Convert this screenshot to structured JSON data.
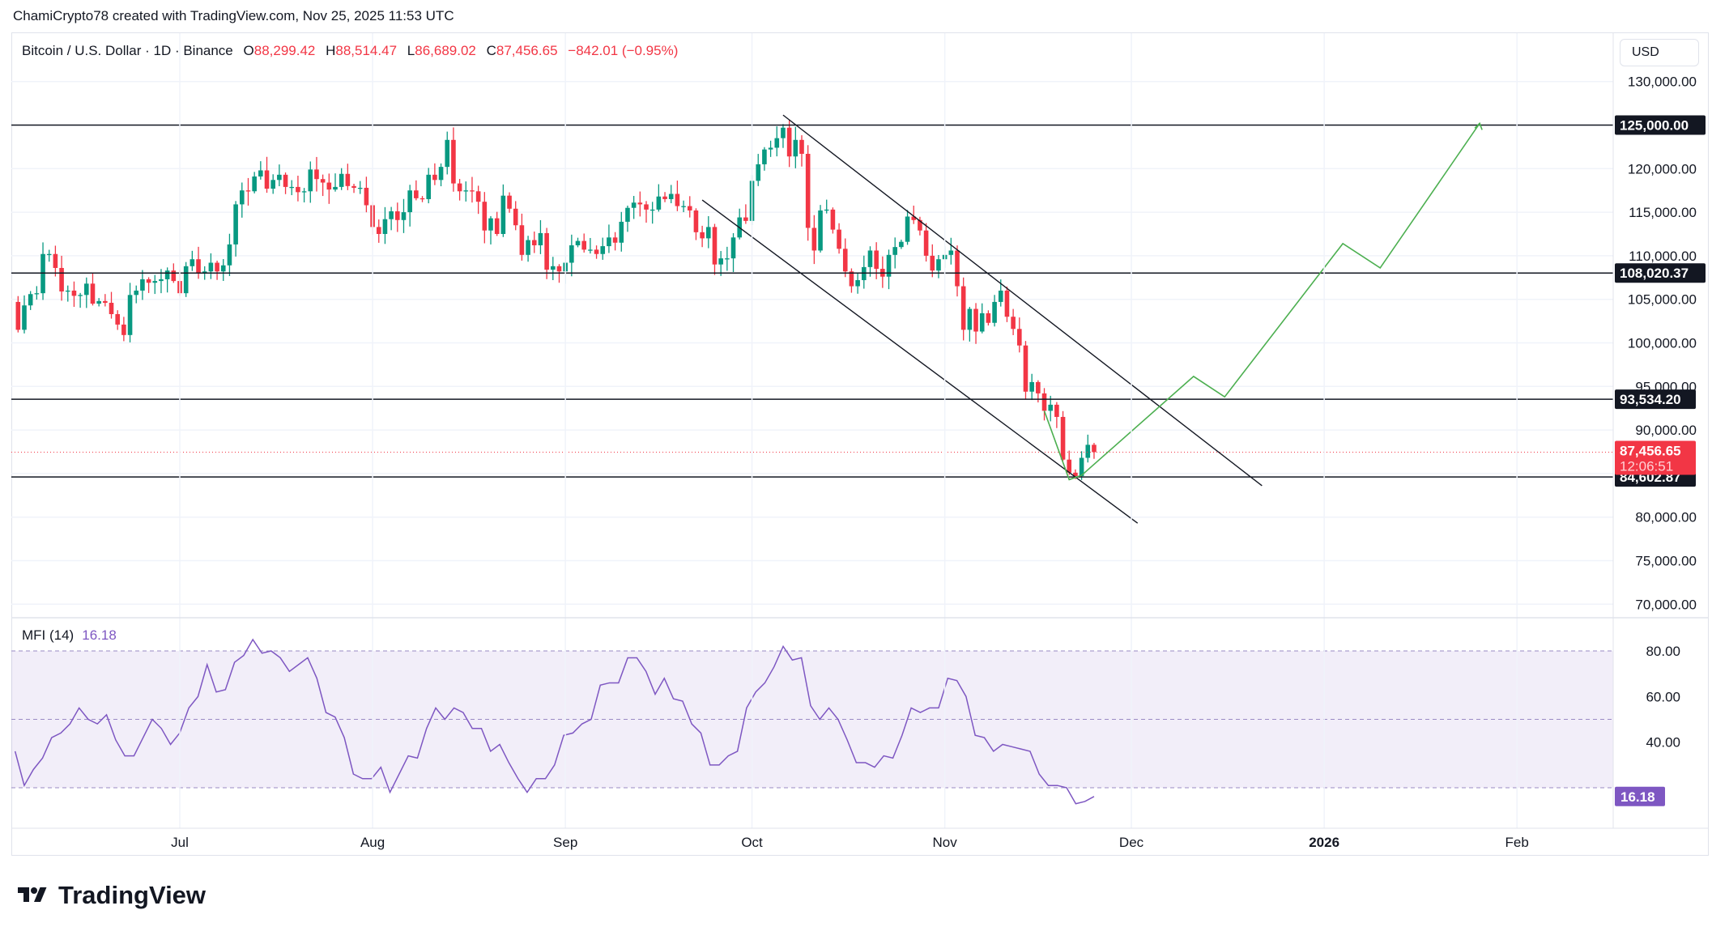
{
  "header": {
    "attribution": "ChamiCrypto78 created with TradingView.com, Nov 25, 2025 11:53 UTC"
  },
  "legend": {
    "symbol": "Bitcoin / U.S. Dollar · 1D · Binance",
    "o_label": "O",
    "o": "88,299.42",
    "h_label": "H",
    "h": "88,514.47",
    "l_label": "L",
    "l": "86,689.02",
    "c_label": "C",
    "c": "87,456.65",
    "change": "−842.01 (−0.95%)"
  },
  "currency_button": "USD",
  "indicator": {
    "name": "MFI (14)",
    "value": "16.18"
  },
  "logo": {
    "text": "TradingView"
  },
  "colors": {
    "up": "#089981",
    "down": "#f23645",
    "mfi": "#7e57c2",
    "projection": "#4caf50",
    "lines": "#131722"
  },
  "chart_data": [
    {
      "type": "candlestick",
      "ylim": [
        67500,
        132500
      ],
      "y_ticks": [
        "130,000.00",
        "120,000.00",
        "115,000.00",
        "110,000.00",
        "105,000.00",
        "100,000.00",
        "95,000.00",
        "90,000.00",
        "80,000.00",
        "75,000.00",
        "70,000.00"
      ],
      "y_tick_values": [
        130000,
        120000,
        115000,
        110000,
        105000,
        100000,
        95000,
        90000,
        80000,
        75000,
        70000
      ],
      "x_ticks": [
        {
          "label": "Jul",
          "date": "2025-07-01"
        },
        {
          "label": "Aug",
          "date": "2025-08-01"
        },
        {
          "label": "Sep",
          "date": "2025-09-01"
        },
        {
          "label": "Oct",
          "date": "2025-10-01"
        },
        {
          "label": "Nov",
          "date": "2025-11-01"
        },
        {
          "label": "Dec",
          "date": "2025-12-01"
        },
        {
          "label": "2026",
          "date": "2026-01-01"
        },
        {
          "label": "Feb",
          "date": "2026-02-01"
        }
      ],
      "x_range": [
        "2025-06-04",
        "2026-02-12"
      ],
      "grid": true,
      "start_date": "2025-06-04",
      "closes": [
        104700,
        101500,
        104300,
        105600,
        105700,
        110200,
        110200,
        108600,
        105900,
        106000,
        105400,
        105500,
        106800,
        104500,
        104800,
        104600,
        103300,
        102100,
        100900,
        105500,
        106000,
        107300,
        106900,
        107100,
        107300,
        108300,
        107100,
        105700,
        108800,
        109600,
        108000,
        108200,
        109200,
        108200,
        108900,
        111300,
        115900,
        117500,
        117400,
        119100,
        119800,
        117700,
        118700,
        119300,
        117900,
        117900,
        117300,
        117400,
        119900,
        118800,
        118400,
        117600,
        117900,
        119400,
        118000,
        117800,
        117800,
        115800,
        113300,
        112500,
        114200,
        115100,
        114100,
        115000,
        117500,
        116600,
        116500,
        119300,
        118700,
        120200,
        123300,
        118300,
        117400,
        117500,
        117400,
        116200,
        112900,
        114300,
        112500,
        116900,
        115400,
        113500,
        110100,
        111800,
        111200,
        112600,
        108400,
        108800,
        108200,
        109200,
        111200,
        111700,
        110700,
        110700,
        110200,
        111100,
        112100,
        111500,
        113900,
        115500,
        116100,
        115900,
        115300,
        115300,
        116800,
        116500,
        117100,
        115700,
        115700,
        115200,
        112700,
        112000,
        113300,
        109000,
        109700,
        109700,
        112100,
        114400,
        114000,
        118600,
        120500,
        122200,
        122400,
        123500,
        124700,
        121400,
        123300,
        121700,
        113200,
        110600,
        115200,
        115300,
        113000,
        110800,
        108200,
        106500,
        107200,
        108700,
        110600,
        108500,
        107600,
        110100,
        111000,
        111600,
        114500,
        114100,
        112900,
        110000,
        108300,
        109600,
        110100,
        110600,
        106500,
        101500,
        103900,
        101300,
        103400,
        102300,
        104700,
        106000,
        103000,
        101600,
        99700,
        94400,
        95500,
        94200,
        92200,
        92900,
        91500,
        86600,
        85100,
        84700,
        86800,
        88299.42,
        87456.65
      ],
      "last_candle": {
        "open": 88299.42,
        "high": 88514.47,
        "low": 86689.02,
        "close": 87456.65
      },
      "horizontal_levels": [
        {
          "price": 125000,
          "label": "125,000.00"
        },
        {
          "price": 108020.37,
          "label": "108,020.37"
        },
        {
          "price": 93534.2,
          "label": "93,534.20"
        },
        {
          "price": 84602.87,
          "label": "84,602.87"
        }
      ],
      "current_price": {
        "price": 87456.65,
        "label": "87,456.65",
        "countdown": "12:06:51"
      },
      "channel_lines": [
        [
          [
            "2025-10-06",
            126150
          ],
          [
            "2025-12-22",
            83600
          ]
        ],
        [
          [
            "2025-09-23",
            116400
          ],
          [
            "2025-12-02",
            79300
          ]
        ]
      ],
      "projection_path": [
        [
          "2025-11-17",
          92200
        ],
        [
          "2025-11-21",
          84300
        ],
        [
          "2025-11-23",
          84800
        ],
        [
          "2025-12-11",
          96150
        ],
        [
          "2025-12-16",
          93800
        ],
        [
          "2026-01-04",
          111400
        ],
        [
          "2026-01-10",
          108600
        ],
        [
          "2026-01-26",
          125200
        ]
      ]
    },
    {
      "type": "line",
      "name": "MFI (14)",
      "ylim": [
        8,
        88
      ],
      "bands": {
        "upper": 80,
        "middle": 50,
        "lower": 20
      },
      "y_ticks": [
        "80.00",
        "60.00",
        "40.00"
      ],
      "y_tick_values": [
        80,
        60,
        40
      ],
      "last_value_label": "16.18",
      "date_range": [
        "2025-06-04",
        "2025-11-25"
      ],
      "values": [
        36,
        21,
        28,
        33,
        42,
        44,
        48,
        55,
        50,
        48,
        52,
        41,
        34,
        34,
        42,
        50,
        46,
        39,
        44,
        55,
        60,
        74,
        62,
        63,
        75,
        78,
        85,
        79,
        80,
        77,
        71,
        74,
        77,
        68,
        53,
        51,
        42,
        26,
        24,
        24,
        29,
        18,
        26,
        34,
        33,
        46,
        55,
        50,
        55,
        53,
        46,
        46,
        36,
        39,
        31,
        24,
        18,
        24,
        24,
        30,
        43,
        44,
        48,
        50,
        65,
        66,
        66,
        77,
        77,
        71,
        61,
        68,
        59,
        58,
        48,
        44,
        30,
        30,
        34,
        36,
        55,
        62,
        66,
        73,
        82,
        76,
        77,
        56,
        50,
        55,
        50,
        41,
        31,
        31,
        29,
        34,
        33,
        43,
        55,
        53,
        55,
        55,
        68,
        67,
        60,
        43,
        42,
        36,
        39,
        38,
        37,
        36,
        26,
        21,
        21,
        20,
        13,
        14,
        16.18
      ]
    }
  ]
}
